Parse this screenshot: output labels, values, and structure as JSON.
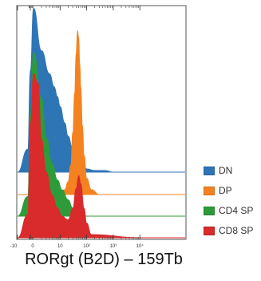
{
  "chart_data": {
    "type": "area",
    "chart_kind": "offset flow cytometry histogram overlay",
    "xlabel": "RORgt (B2D) – 159Tb",
    "x_scale": "biexponential",
    "xlim": [
      -10,
      10000
    ],
    "x_ticks": [
      {
        "value": -10,
        "label": "-10"
      },
      {
        "value": 0,
        "label": "0"
      },
      {
        "value": 10,
        "label": "10"
      },
      {
        "value": 100,
        "label": "10²"
      },
      {
        "value": 1000,
        "label": "10³"
      },
      {
        "value": 10000,
        "label": "10⁴"
      }
    ],
    "y_axis": "normalized to mode (% of max), each series offset vertically",
    "legend_position": "right",
    "grid": false,
    "series": [
      {
        "name": "DN",
        "color": "#2e75b6",
        "x": [
          -10,
          -2,
          0,
          1,
          2,
          4,
          6,
          8,
          10,
          15,
          20,
          30,
          50,
          80,
          100,
          200,
          500,
          1000,
          10000
        ],
        "values": [
          0,
          14,
          62,
          100,
          74,
          60,
          52,
          46,
          40,
          30,
          22,
          14,
          7,
          3,
          2,
          1,
          1,
          0,
          0
        ]
      },
      {
        "name": "DP",
        "color": "#f58220",
        "x": [
          -10,
          0,
          5,
          10,
          15,
          20,
          25,
          30,
          35,
          40,
          45,
          50,
          55,
          60,
          70,
          80,
          100,
          150,
          300,
          10000
        ],
        "values": [
          0,
          0,
          0,
          1,
          3,
          8,
          18,
          38,
          62,
          86,
          100,
          96,
          80,
          66,
          42,
          24,
          10,
          3,
          0,
          0
        ]
      },
      {
        "name": "CD4 SP",
        "color": "#2e9b3a",
        "x": [
          -10,
          -2,
          0,
          1,
          2,
          3,
          5,
          8,
          12,
          20,
          30,
          50,
          100,
          200,
          10000
        ],
        "values": [
          0,
          12,
          62,
          100,
          72,
          48,
          32,
          22,
          16,
          10,
          5,
          2,
          0,
          0,
          0
        ]
      },
      {
        "name": "CD8 SP",
        "color": "#d92b2b",
        "x": [
          -10,
          -2,
          0,
          1,
          1.5,
          2,
          3,
          5,
          8,
          12,
          20,
          30,
          40,
          50,
          60,
          80,
          100,
          150,
          10000
        ],
        "values": [
          0,
          14,
          70,
          100,
          94,
          60,
          40,
          26,
          18,
          13,
          11,
          18,
          30,
          38,
          33,
          18,
          9,
          2,
          0
        ]
      }
    ]
  }
}
